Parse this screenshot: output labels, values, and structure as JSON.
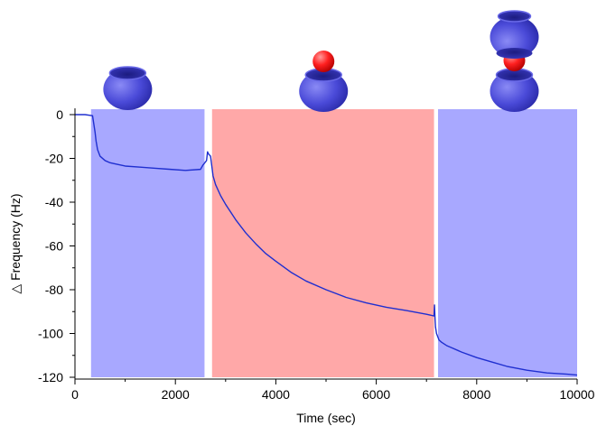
{
  "chart_data": {
    "type": "line",
    "title": "",
    "xlabel": "Time (sec)",
    "ylabel": "△ Frequency (Hz)",
    "xlim": [
      0,
      10000
    ],
    "ylim": [
      -120,
      0
    ],
    "x_ticks": [
      0,
      2000,
      4000,
      6000,
      8000,
      10000
    ],
    "y_ticks": [
      0,
      -20,
      -40,
      -60,
      -80,
      -100,
      -120
    ],
    "grid": false,
    "legend": "none",
    "regions": [
      {
        "x_start": 320,
        "x_end": 2580,
        "color": "#a8a8ff"
      },
      {
        "x_start": 2730,
        "x_end": 7150,
        "color": "#ffa8a8"
      },
      {
        "x_start": 7230,
        "x_end": 10000,
        "color": "#a8a8ff"
      }
    ],
    "series": [
      {
        "color": "#1f2fd0",
        "x": [
          0,
          200,
          350,
          400,
          420,
          450,
          500,
          600,
          700,
          800,
          1000,
          1300,
          1600,
          1900,
          2200,
          2500,
          2550,
          2620,
          2640,
          2660,
          2700,
          2750,
          2800,
          2900,
          3000,
          3200,
          3400,
          3600,
          3800,
          4000,
          4300,
          4600,
          5000,
          5400,
          5800,
          6200,
          6600,
          7000,
          7150,
          7160,
          7170,
          7180,
          7200,
          7250,
          7300,
          7400,
          7500,
          7700,
          8000,
          8300,
          8600,
          9000,
          9400,
          9800,
          10000
        ],
        "y": [
          0,
          0,
          -0.5,
          -8,
          -12,
          -16,
          -19,
          -21,
          -22,
          -22.5,
          -23.5,
          -24,
          -24.5,
          -25,
          -25.5,
          -25,
          -23,
          -21,
          -17,
          -18,
          -19,
          -28,
          -32,
          -37,
          -41,
          -48,
          -54,
          -59,
          -63.5,
          -67,
          -72,
          -76,
          -80,
          -83.5,
          -86,
          -88,
          -89.5,
          -91.2,
          -92,
          -87,
          -93,
          -97,
          -100,
          -103,
          -104,
          -105.5,
          -106.5,
          -108.5,
          -111,
          -113,
          -115,
          -116.8,
          -118,
          -118.6,
          -119
        ]
      }
    ],
    "annotations": [
      {
        "label_icon": "ring-icon",
        "x": 1050
      },
      {
        "label_icon": "ring-with-ball-icon",
        "x": 4950
      },
      {
        "label_icon": "stacked-rings-with-ball-icon",
        "x": 8750
      }
    ]
  }
}
